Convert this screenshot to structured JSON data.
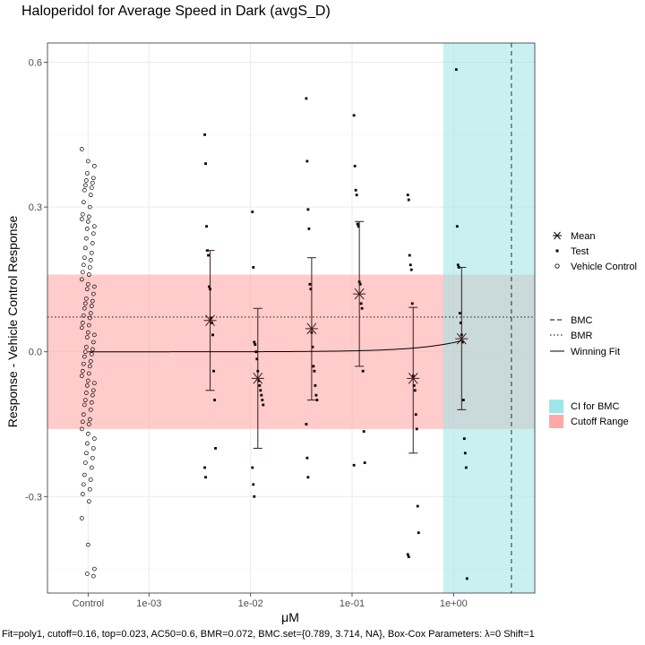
{
  "title": "Haloperidol for Average Speed in Dark (avgS_D)",
  "footnote": "Fit=poly1, cutoff=0.16, top=0.023, AC50=0.6, BMR=0.072, BMC.set={0.789, 3.714, NA}, Box-Cox Parameters: λ=0 Shift=1",
  "chart_data": {
    "type": "scatter",
    "title": "Haloperidol for Average Speed in Dark (avgS_D)",
    "xlabel": "μM",
    "ylabel": "Response - Vehicle Control Response",
    "x_scale": "log10",
    "xlim_log10": [
      -4,
      0.8
    ],
    "ylim": [
      -0.5,
      0.64
    ],
    "x_ticks": [
      {
        "label": "Control",
        "log10": -3.6
      },
      {
        "label": "1e-03",
        "log10": -3
      },
      {
        "label": "1e-02",
        "log10": -2
      },
      {
        "label": "1e-01",
        "log10": -1
      },
      {
        "label": "1e+00",
        "log10": 0
      }
    ],
    "y_ticks": [
      {
        "label": "-0.3",
        "value": -0.3
      },
      {
        "label": "0.0",
        "value": 0.0
      },
      {
        "label": "0.3",
        "value": 0.3
      },
      {
        "label": "0.6",
        "value": 0.6
      }
    ],
    "grid": true,
    "legend_position": "right",
    "cutoff_range": [
      -0.16,
      0.16
    ],
    "bmr": 0.072,
    "bmc": 3.714,
    "ci_bmc": [
      0.789,
      3.714
    ],
    "colors": {
      "ci": "#9ee6e8",
      "cutoff": "#ffa8a8",
      "points": "#000000",
      "mean": "#3a1a1a"
    },
    "fit": {
      "model": "poly1",
      "top": 0.023,
      "max_conc": 1.2
    },
    "means": [
      {
        "conc": 0.004,
        "mean": 0.065,
        "lo": -0.08,
        "hi": 0.21
      },
      {
        "conc": 0.0118,
        "mean": -0.055,
        "lo": -0.2,
        "hi": 0.09
      },
      {
        "conc": 0.04,
        "mean": 0.048,
        "lo": -0.1,
        "hi": 0.195
      },
      {
        "conc": 0.118,
        "mean": 0.12,
        "lo": -0.03,
        "hi": 0.27
      },
      {
        "conc": 0.4,
        "mean": -0.055,
        "lo": -0.21,
        "hi": 0.092
      },
      {
        "conc": 1.2,
        "mean": 0.027,
        "lo": -0.12,
        "hi": 0.175
      }
    ],
    "test_points": [
      {
        "conc": 0.004,
        "values": [
          0.45,
          0.39,
          0.26,
          0.21,
          0.2,
          0.135,
          0.13,
          0.07,
          0.06,
          0.035,
          -0.04,
          -0.1,
          -0.2,
          -0.24,
          -0.26
        ]
      },
      {
        "conc": 0.0118,
        "values": [
          0.29,
          0.175,
          0.02,
          0.015,
          0.0,
          -0.015,
          -0.04,
          -0.06,
          -0.07,
          -0.08,
          -0.09,
          -0.1,
          -0.11,
          -0.24,
          -0.275,
          -0.3
        ]
      },
      {
        "conc": 0.04,
        "values": [
          0.525,
          0.395,
          0.295,
          0.255,
          0.14,
          0.13,
          0.04,
          0.01,
          -0.03,
          -0.04,
          -0.07,
          -0.09,
          -0.1,
          -0.15,
          -0.22,
          -0.26
        ]
      },
      {
        "conc": 0.118,
        "values": [
          0.49,
          0.385,
          0.335,
          0.325,
          0.265,
          0.26,
          0.145,
          0.14,
          0.1,
          0.09,
          -0.04,
          -0.165,
          -0.23,
          -0.235
        ]
      },
      {
        "conc": 0.4,
        "values": [
          0.325,
          0.315,
          0.2,
          0.18,
          0.17,
          0.1,
          -0.05,
          -0.07,
          -0.08,
          -0.13,
          -0.16,
          -0.32,
          -0.375,
          -0.42,
          -0.425
        ]
      },
      {
        "conc": 1.2,
        "values": [
          0.585,
          0.26,
          0.18,
          0.175,
          0.08,
          0.06,
          0.035,
          0.02,
          -0.1,
          -0.18,
          -0.21,
          -0.24,
          -0.47
        ]
      }
    ],
    "control_points": [
      0.42,
      0.395,
      0.385,
      0.37,
      0.36,
      0.355,
      0.35,
      0.345,
      0.34,
      0.335,
      0.325,
      0.31,
      0.3,
      0.285,
      0.28,
      0.275,
      0.27,
      0.26,
      0.255,
      0.245,
      0.235,
      0.225,
      0.215,
      0.205,
      0.195,
      0.19,
      0.18,
      0.175,
      0.165,
      0.16,
      0.15,
      0.14,
      0.135,
      0.13,
      0.12,
      0.11,
      0.105,
      0.1,
      0.095,
      0.09,
      0.08,
      0.075,
      0.07,
      0.06,
      0.055,
      0.05,
      0.04,
      0.035,
      0.03,
      0.02,
      0.01,
      0.005,
      0.0,
      -0.005,
      -0.01,
      -0.02,
      -0.025,
      -0.03,
      -0.04,
      -0.045,
      -0.05,
      -0.06,
      -0.065,
      -0.07,
      -0.08,
      -0.085,
      -0.09,
      -0.1,
      -0.105,
      -0.11,
      -0.12,
      -0.13,
      -0.14,
      -0.145,
      -0.15,
      -0.16,
      -0.17,
      -0.18,
      -0.19,
      -0.2,
      -0.21,
      -0.22,
      -0.23,
      -0.24,
      -0.255,
      -0.265,
      -0.275,
      -0.285,
      -0.295,
      -0.31,
      -0.345,
      -0.4,
      -0.45,
      -0.46,
      -0.465
    ]
  },
  "legend": {
    "mean": "Mean",
    "test": "Test",
    "vehicle": "Vehicle Control",
    "bmc": "BMC",
    "bmr": "BMR",
    "fit": "Winning Fit",
    "ci": "CI for BMC",
    "cutoff": "Cutoff Range"
  }
}
